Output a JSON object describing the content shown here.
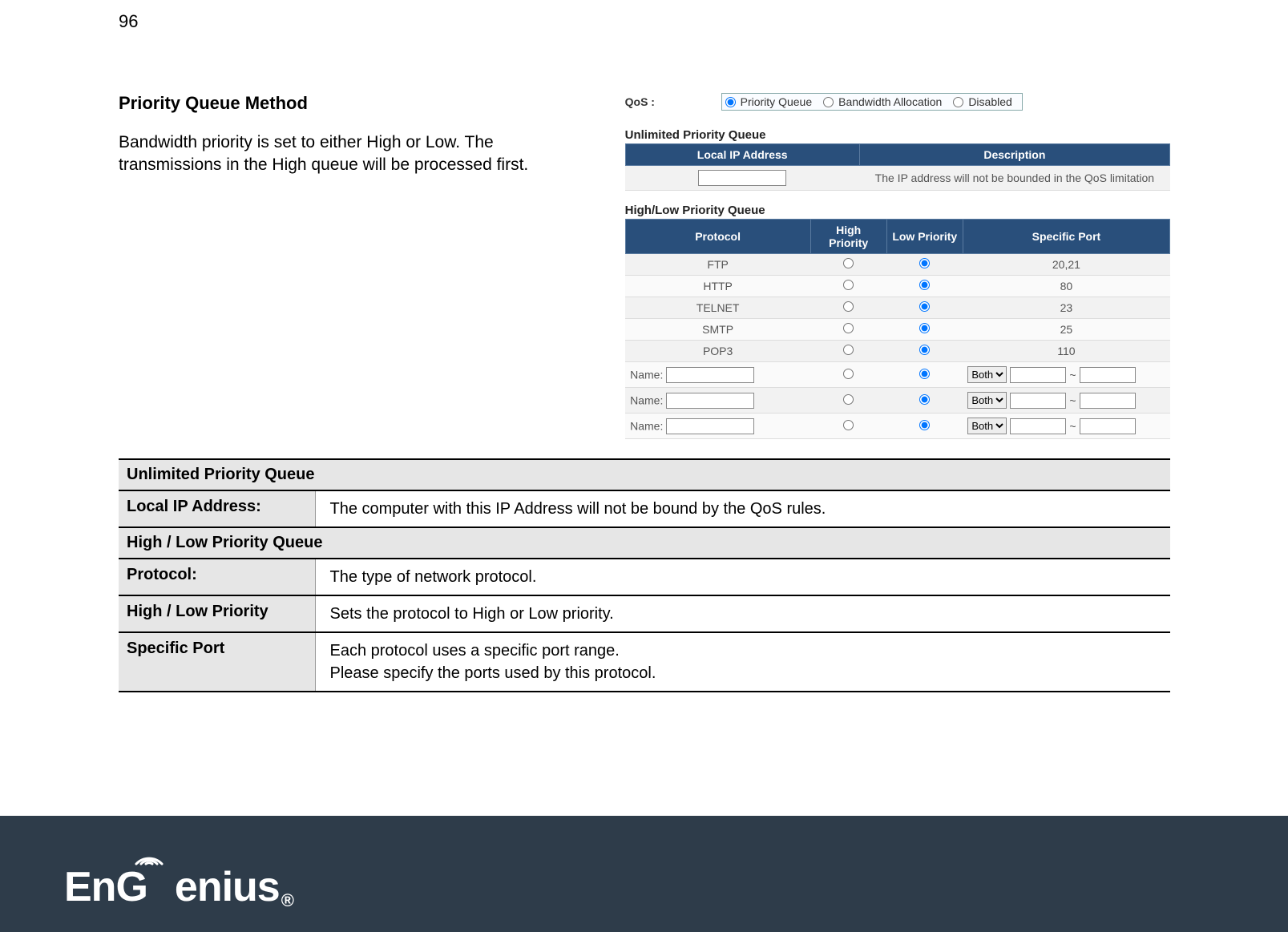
{
  "pageNumber": "96",
  "section": {
    "title": "Priority Queue Method",
    "body": "Bandwidth priority is set to either High or Low. The transmissions in the High queue will be processed first."
  },
  "screenshot": {
    "qosLabel": "QoS :",
    "options": {
      "priorityQueue": "Priority Queue",
      "bandwidthAllocation": "Bandwidth Allocation",
      "disabled": "Disabled",
      "selected": "priorityQueue"
    },
    "unlimited": {
      "header": "Unlimited Priority Queue",
      "col1": "Local IP Address",
      "col2": "Description",
      "desc": "The IP address will not be bounded in the QoS limitation"
    },
    "queueTable": {
      "header": "High/Low Priority Queue",
      "cols": {
        "protocol": "Protocol",
        "high": "High Priority",
        "low": "Low Priority",
        "port": "Specific Port"
      },
      "rows": [
        {
          "protocol": "FTP",
          "port": "20,21"
        },
        {
          "protocol": "HTTP",
          "port": "80"
        },
        {
          "protocol": "TELNET",
          "port": "23"
        },
        {
          "protocol": "SMTP",
          "port": "25"
        },
        {
          "protocol": "POP3",
          "port": "110"
        }
      ],
      "customLabel": "Name:",
      "customSelect": "Both",
      "tilde": "~"
    }
  },
  "descTable": {
    "group1": "Unlimited Priority Queue",
    "rows1": [
      {
        "key": "Local IP Address:",
        "val": "The computer with this IP Address will not be bound by the QoS rules."
      }
    ],
    "group2": "High / Low Priority Queue",
    "rows2": [
      {
        "key": "Protocol:",
        "val": "The type of network protocol."
      },
      {
        "key": "High / Low Priority",
        "val": "Sets the protocol to High or Low priority."
      },
      {
        "key": "Specific Port",
        "val": "Each protocol uses a specific port range.\nPlease specify the ports used by this protocol."
      }
    ]
  },
  "brand": {
    "name": "EnGenius",
    "reg": "®"
  },
  "colors": {
    "tableHeaderBg": "#294f7b",
    "footerBg": "#2e3c4a",
    "descHeaderBg": "#e6e6e6"
  }
}
